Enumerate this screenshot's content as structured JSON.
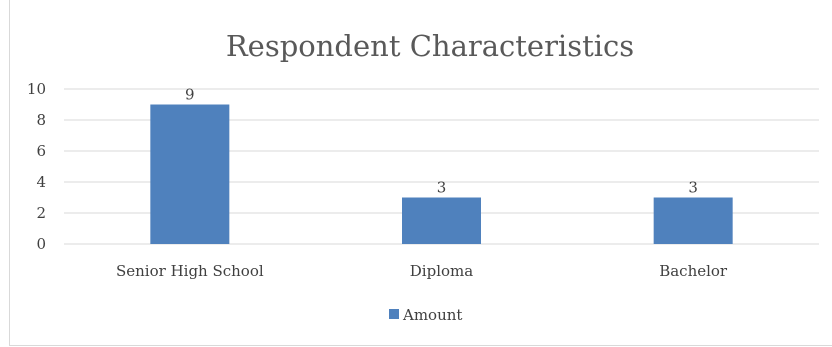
{
  "chart_data": {
    "type": "bar",
    "title": "Respondent Characteristics",
    "categories": [
      "Senior High School",
      "Diploma",
      "Bachelor"
    ],
    "series": [
      {
        "name": "Amount",
        "values": [
          9,
          3,
          3
        ],
        "color": "#4f81bd"
      }
    ],
    "ylim": [
      0,
      10
    ],
    "yticks": [
      0,
      2,
      4,
      6,
      8,
      10
    ],
    "grid": true,
    "data_labels": true,
    "legend": "bottom"
  }
}
